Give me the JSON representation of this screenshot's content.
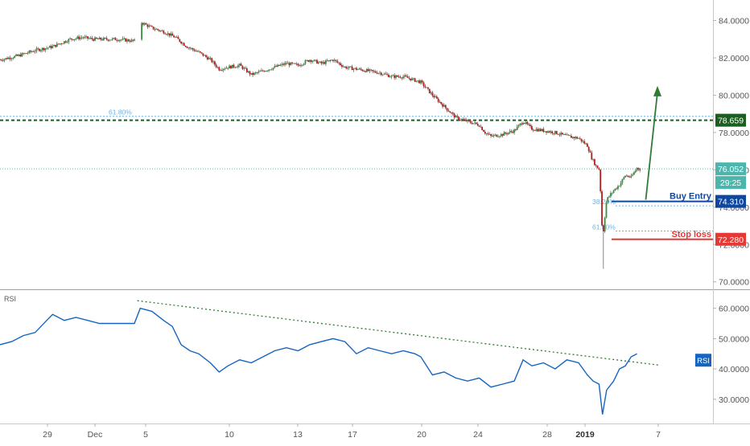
{
  "chart_data": [
    {
      "type": "candlestick",
      "panel": "price",
      "ylim": [
        69.6,
        85.1
      ],
      "yticks": [
        70,
        72,
        74,
        76,
        78,
        80,
        82,
        84
      ],
      "ytick_labels": [
        "70.0000",
        "72.0000",
        "74.0000",
        "76.0000",
        "78.0000",
        "80.0000",
        "82.0000",
        "84.0000"
      ],
      "x_ticks": [
        {
          "label": "29",
          "bold": false
        },
        {
          "label": "Dec",
          "bold": false
        },
        {
          "label": "5",
          "bold": false
        },
        {
          "label": "10",
          "bold": false
        },
        {
          "label": "13",
          "bold": false
        },
        {
          "label": "17",
          "bold": false
        },
        {
          "label": "20",
          "bold": false
        },
        {
          "label": "24",
          "bold": false
        },
        {
          "label": "28",
          "bold": false
        },
        {
          "label": "2019",
          "bold": true
        },
        {
          "label": "7",
          "bold": false
        }
      ],
      "trend": [
        [
          0,
          81.9
        ],
        [
          3,
          82.1
        ],
        [
          6,
          82.4
        ],
        [
          9,
          82.6
        ],
        [
          12,
          83.0
        ],
        [
          14,
          83.1
        ],
        [
          16,
          83.0
        ],
        [
          20,
          83.0
        ],
        [
          23,
          82.9
        ],
        [
          24.2,
          83.9
        ],
        [
          26,
          83.6
        ],
        [
          28,
          83.4
        ],
        [
          30,
          83.1
        ],
        [
          32,
          82.6
        ],
        [
          34,
          82.3
        ],
        [
          36,
          81.9
        ],
        [
          37.5,
          81.4
        ],
        [
          39,
          81.5
        ],
        [
          41,
          81.6
        ],
        [
          43,
          81.1
        ],
        [
          45,
          81.3
        ],
        [
          47,
          81.5
        ],
        [
          49,
          81.7
        ],
        [
          51,
          81.6
        ],
        [
          53,
          81.9
        ],
        [
          55,
          81.7
        ],
        [
          57,
          81.9
        ],
        [
          59,
          81.5
        ],
        [
          61,
          81.4
        ],
        [
          63,
          81.3
        ],
        [
          65,
          81.2
        ],
        [
          67,
          81.0
        ],
        [
          69,
          81.0
        ],
        [
          71,
          80.8
        ],
        [
          72,
          80.7
        ],
        [
          74,
          80.0
        ],
        [
          76,
          79.4
        ],
        [
          78,
          78.8
        ],
        [
          80,
          78.6
        ],
        [
          82,
          78.4
        ],
        [
          83,
          78.0
        ],
        [
          84,
          77.8
        ],
        [
          86,
          77.9
        ],
        [
          88,
          78.1
        ],
        [
          89.5,
          78.6
        ],
        [
          91,
          78.2
        ],
        [
          93,
          78.1
        ],
        [
          95,
          78.0
        ],
        [
          97,
          77.8
        ],
        [
          99,
          77.7
        ],
        [
          100.5,
          77.3
        ],
        [
          101.3,
          76.6
        ],
        [
          102,
          76.2
        ],
        [
          102.6,
          76.0
        ],
        [
          103.1,
          72.3
        ],
        [
          103.8,
          74.4
        ],
        [
          105,
          74.9
        ],
        [
          106,
          75.2
        ],
        [
          107,
          75.7
        ],
        [
          108,
          75.6
        ],
        [
          109,
          76.1
        ],
        [
          109.5,
          76.05
        ]
      ],
      "horizontal_lines": [
        {
          "label": "61.80%",
          "value": 78.87,
          "style": "fib",
          "color": "#64b5f6"
        },
        {
          "label": "",
          "value": 78.659,
          "style": "dashed-bold",
          "color": "#1b5e20"
        },
        {
          "label": "",
          "value": 76.052,
          "style": "dotted-thin",
          "color": "#4db6ac"
        },
        {
          "label": "38.20%",
          "value": 74.07,
          "style": "fib",
          "color": "#64b5f6"
        },
        {
          "label": "61.80%",
          "value": 72.72,
          "style": "fib",
          "color": "#64b5f6"
        }
      ],
      "levels": [
        {
          "name": "Buy Entry",
          "value": 74.31,
          "price_label": "74.310",
          "color": "#0d47a1"
        },
        {
          "name": "Stop loss",
          "value": 72.28,
          "price_label": "72.280",
          "color": "#e53935"
        }
      ],
      "price_badges": [
        {
          "label": "78.659",
          "value": 78.659,
          "color": "#1b5e20"
        },
        {
          "label": "76.052",
          "value": 76.052,
          "color": "#4db6ac"
        },
        {
          "label": "29:25",
          "value": 75.2,
          "color": "#4db6ac"
        }
      ],
      "arrow": {
        "from": [
          110.5,
          74.4
        ],
        "to": [
          112.5,
          80.5
        ],
        "color": "#2e7d32"
      }
    },
    {
      "type": "line",
      "panel": "indicator",
      "title": "RSI",
      "series_label": "RSI",
      "ylim": [
        22,
        66
      ],
      "yticks": [
        30,
        40,
        50,
        60
      ],
      "ytick_labels": [
        "30.0000",
        "40.0000",
        "50.0000",
        "60.0000"
      ],
      "rsi": [
        [
          0,
          48
        ],
        [
          2,
          49
        ],
        [
          4,
          51
        ],
        [
          6,
          52
        ],
        [
          8,
          56
        ],
        [
          9,
          58
        ],
        [
          11,
          56
        ],
        [
          13,
          57
        ],
        [
          15,
          56
        ],
        [
          17,
          55
        ],
        [
          20,
          55
        ],
        [
          23,
          55
        ],
        [
          24,
          60
        ],
        [
          26,
          59
        ],
        [
          28,
          56
        ],
        [
          29.5,
          54
        ],
        [
          31,
          48
        ],
        [
          32.5,
          46
        ],
        [
          34,
          45
        ],
        [
          36,
          42
        ],
        [
          37.5,
          39
        ],
        [
          39,
          41
        ],
        [
          41,
          43
        ],
        [
          43,
          42
        ],
        [
          45,
          44
        ],
        [
          47,
          46
        ],
        [
          49,
          47
        ],
        [
          51,
          46
        ],
        [
          53,
          48
        ],
        [
          55,
          49
        ],
        [
          57,
          50
        ],
        [
          59,
          49
        ],
        [
          61,
          45
        ],
        [
          63,
          47
        ],
        [
          65,
          46
        ],
        [
          67,
          45
        ],
        [
          69,
          46
        ],
        [
          71,
          45
        ],
        [
          72,
          44
        ],
        [
          74,
          38
        ],
        [
          76,
          39
        ],
        [
          78,
          37
        ],
        [
          80,
          36
        ],
        [
          82,
          37
        ],
        [
          84,
          34
        ],
        [
          86,
          35
        ],
        [
          88,
          36
        ],
        [
          89.5,
          43
        ],
        [
          91,
          41
        ],
        [
          93,
          42
        ],
        [
          95,
          40
        ],
        [
          97,
          43
        ],
        [
          99,
          42
        ],
        [
          100.5,
          38
        ],
        [
          101.5,
          36
        ],
        [
          102.5,
          35
        ],
        [
          103.1,
          25
        ],
        [
          103.8,
          33
        ],
        [
          105,
          36
        ],
        [
          106,
          40
        ],
        [
          107,
          41
        ],
        [
          108,
          44
        ],
        [
          109,
          45
        ]
      ],
      "trendline": {
        "from": [
          23.5,
          62.5
        ],
        "to": [
          113,
          41.2
        ],
        "color": "#2e7d32"
      }
    }
  ]
}
